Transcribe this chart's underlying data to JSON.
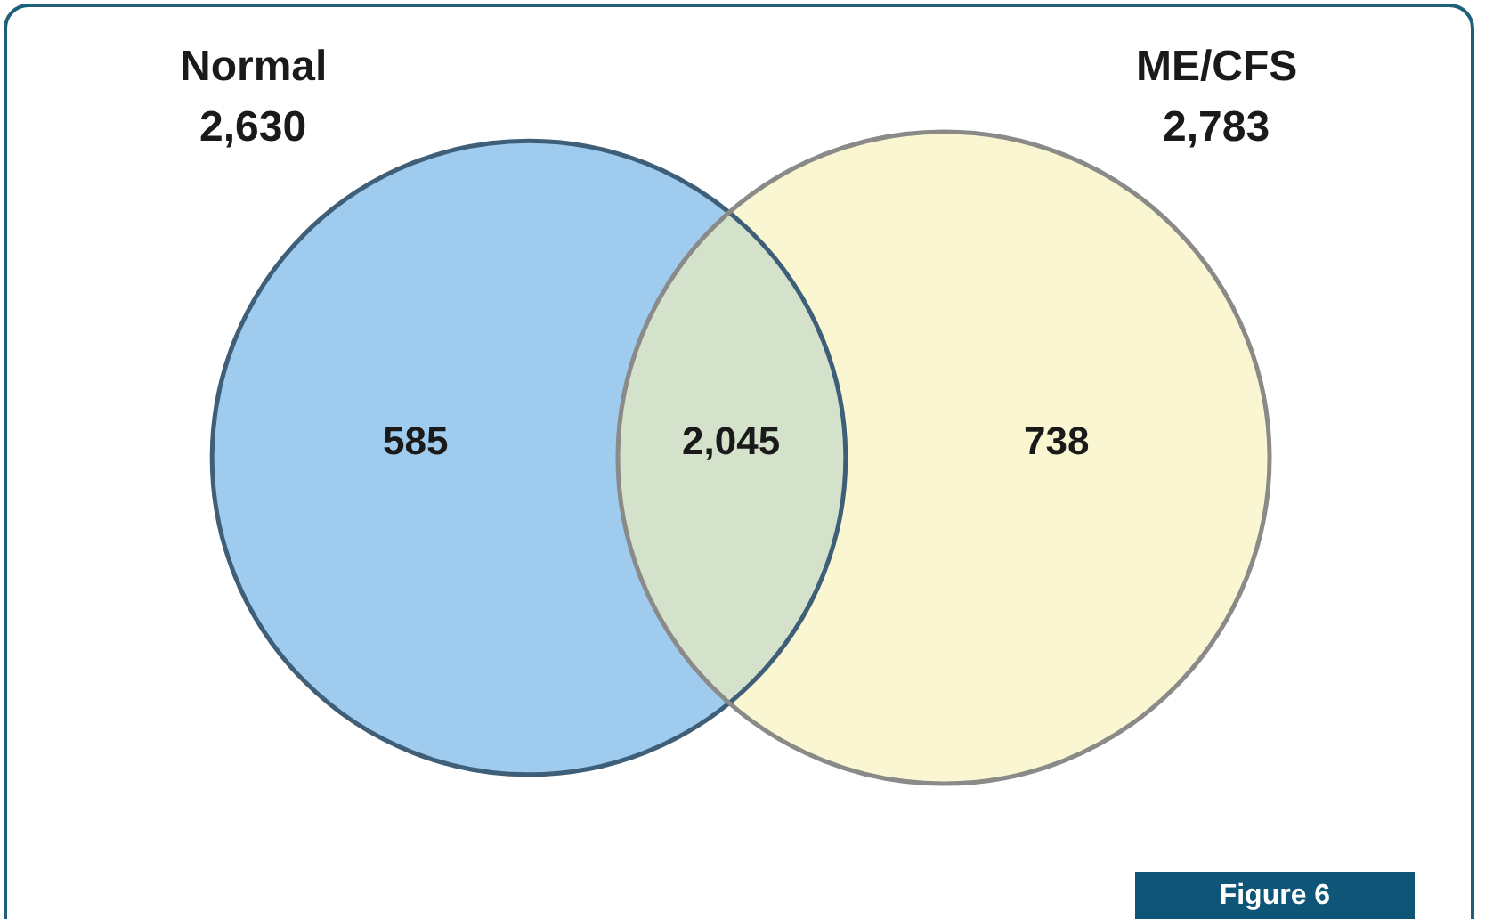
{
  "chart_data": {
    "type": "other",
    "categories": [
      "Normal",
      "ME/CFS"
    ],
    "values": [
      2630,
      2783
    ],
    "value_labels": [
      "2,630",
      "2,783"
    ],
    "colors": [
      "#9ecbee",
      "#f6f1b4"
    ],
    "annotations": [
      "585",
      "2,045",
      "738",
      "Figure 6"
    ]
  }
}
